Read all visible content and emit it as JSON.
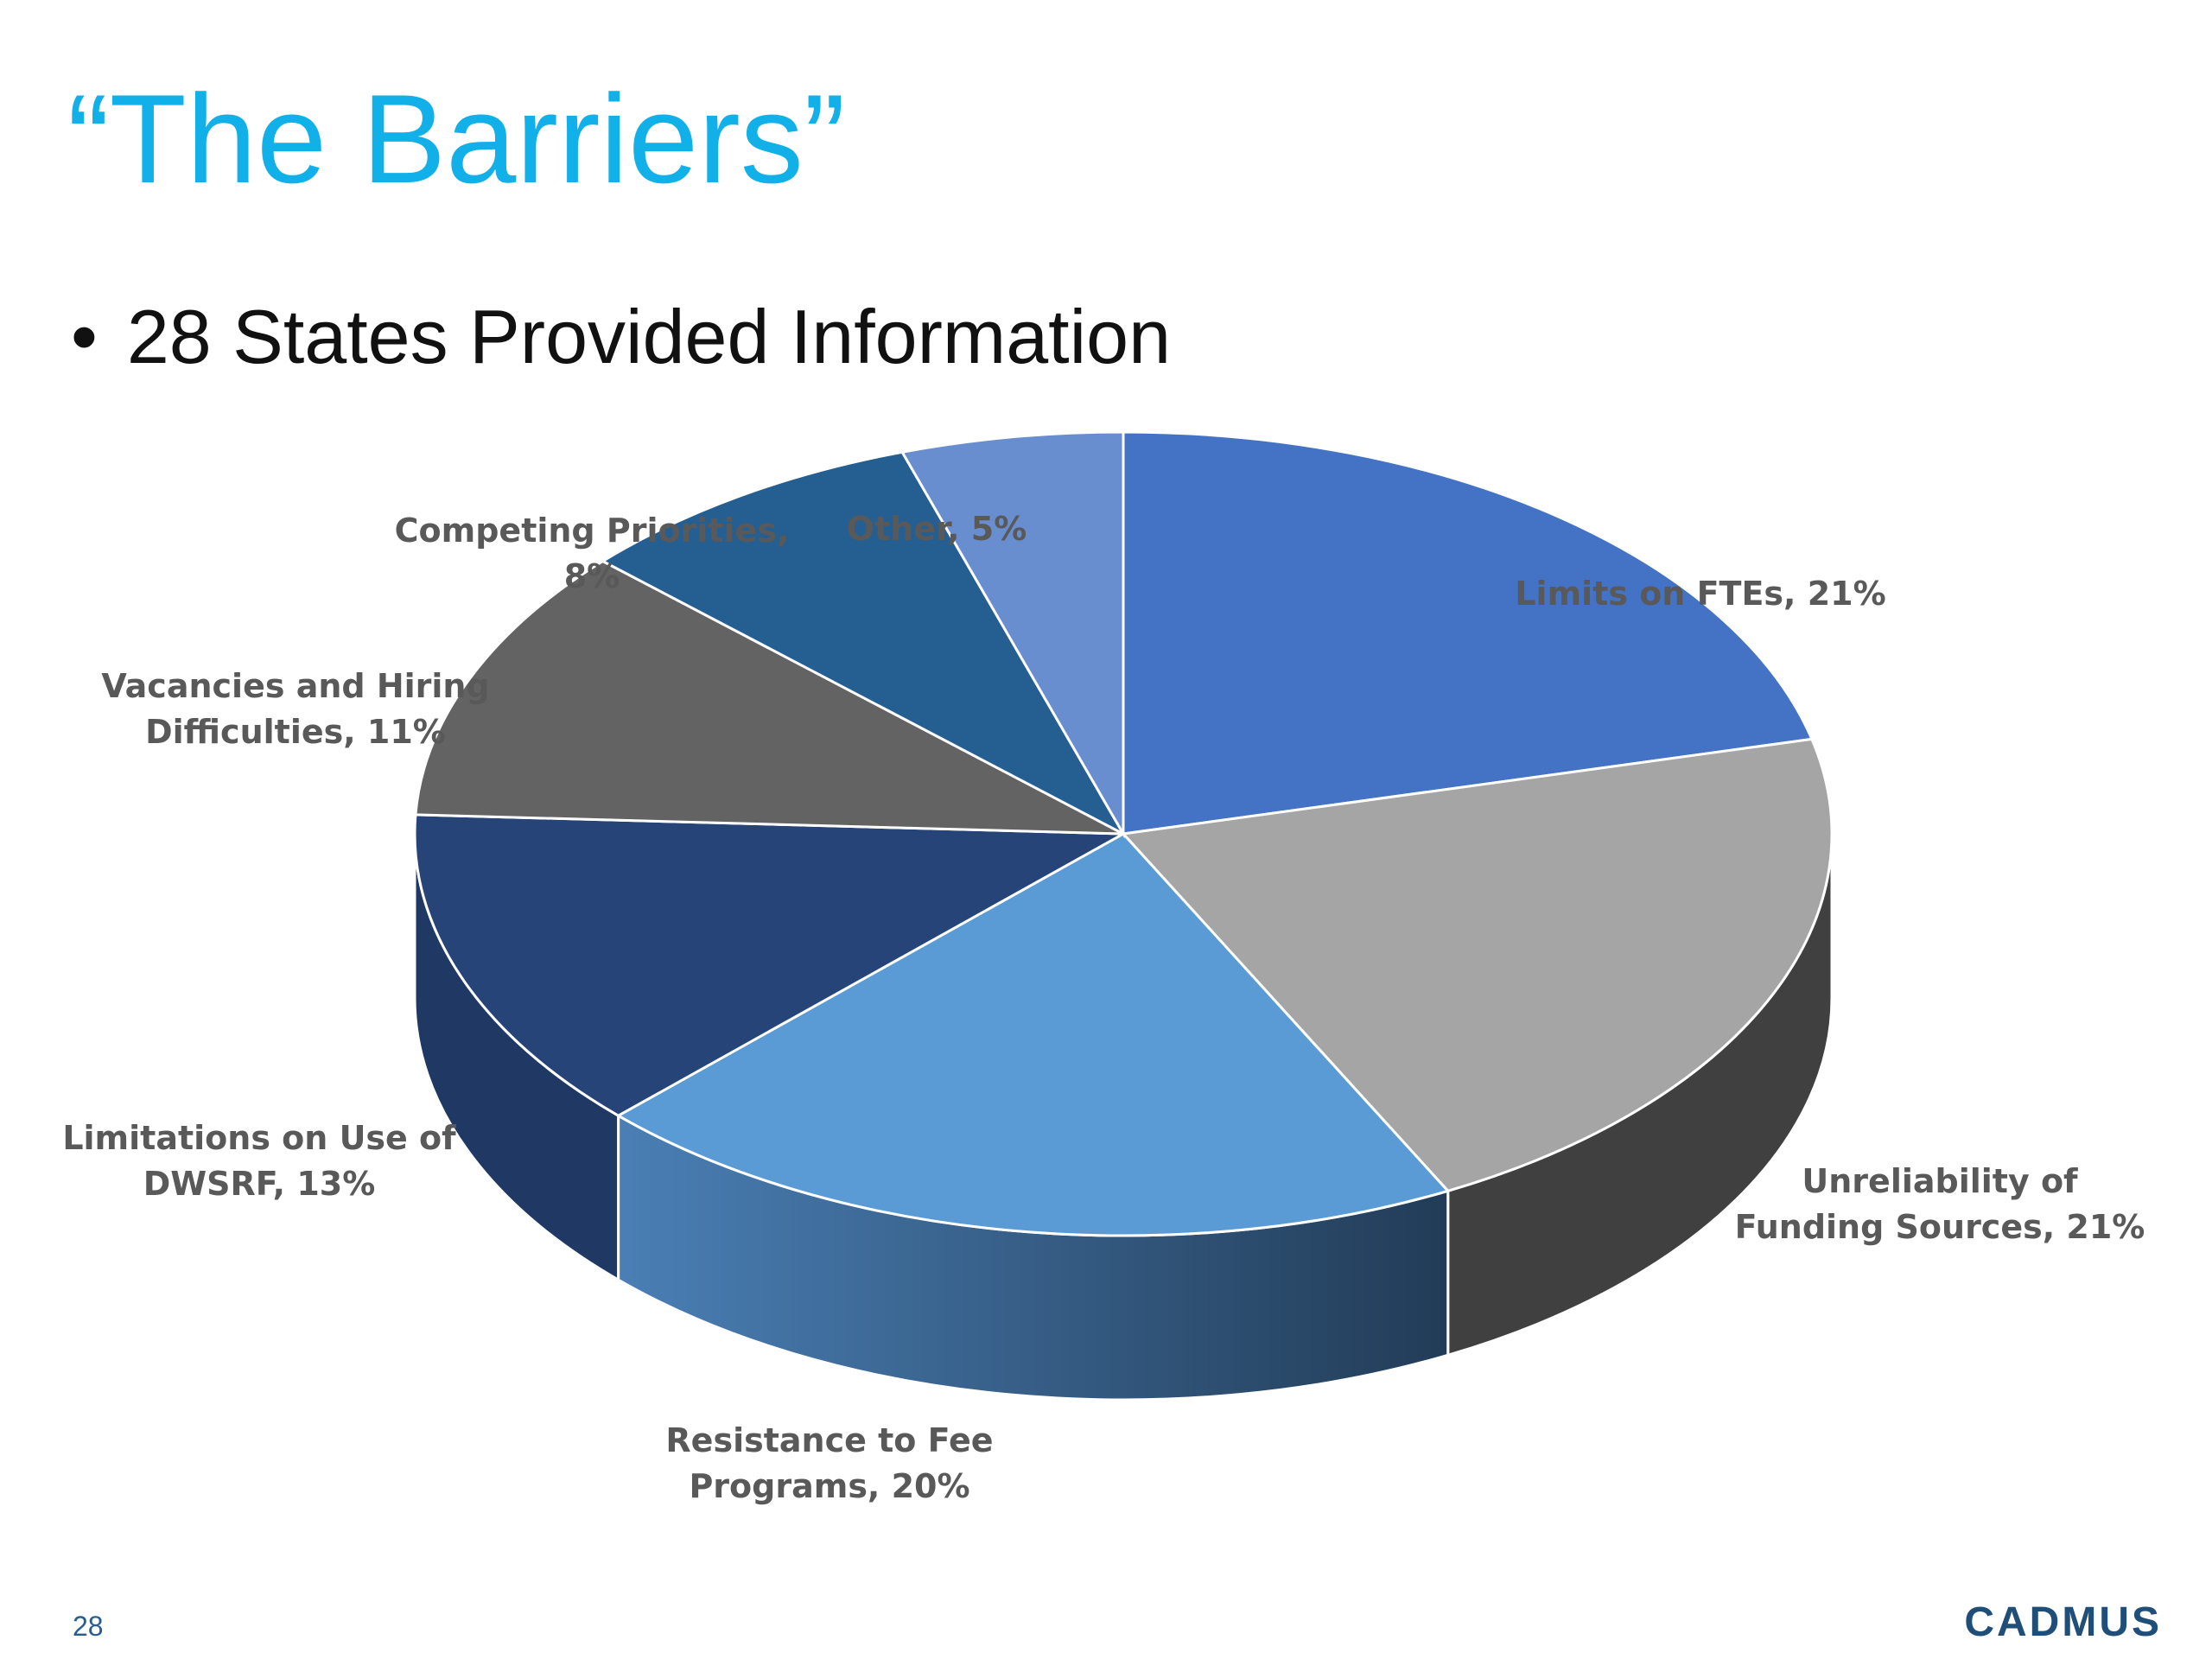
{
  "slide": {
    "title": "“The Barriers”",
    "bullet_mark": "•",
    "bullet_text": "28 States Provided Information",
    "page_number": "28",
    "brand": "CADMUS"
  },
  "chart_data": {
    "type": "pie",
    "style": "3d",
    "title": "",
    "categories": [
      "Limits on FTEs",
      "Unreliability of Funding Sources",
      "Resistance to Fee Programs",
      "Limitations on Use of DWSRF",
      "Vacancies and Hiring Difficulties",
      "Competing Priorities",
      "Other"
    ],
    "values": [
      21,
      21,
      20,
      13,
      11,
      8,
      5
    ],
    "unit": "%",
    "data_labels": [
      [
        "Limits on FTEs, 21%"
      ],
      [
        "Unreliability of",
        "Funding Sources, 21%"
      ],
      [
        "Resistance to Fee",
        "Programs, 20%"
      ],
      [
        "Limitations on Use of",
        "DWSRF, 13%"
      ],
      [
        "Vacancies and Hiring",
        "Difficulties, 11%"
      ],
      [
        "Competing Priorities,",
        "8%"
      ],
      [
        "Other, 5%"
      ]
    ],
    "colors": [
      "#4472c4",
      "#a5a5a5",
      "#5b9bd5",
      "#264478",
      "#636363",
      "#255e91",
      "#698ed0"
    ],
    "side_colors": [
      "#2f5597",
      "#404040",
      "#3a6d9e",
      "#1f3864",
      "#404040",
      "#1b4a75",
      "#4a6fb0"
    ],
    "legend": "none"
  }
}
